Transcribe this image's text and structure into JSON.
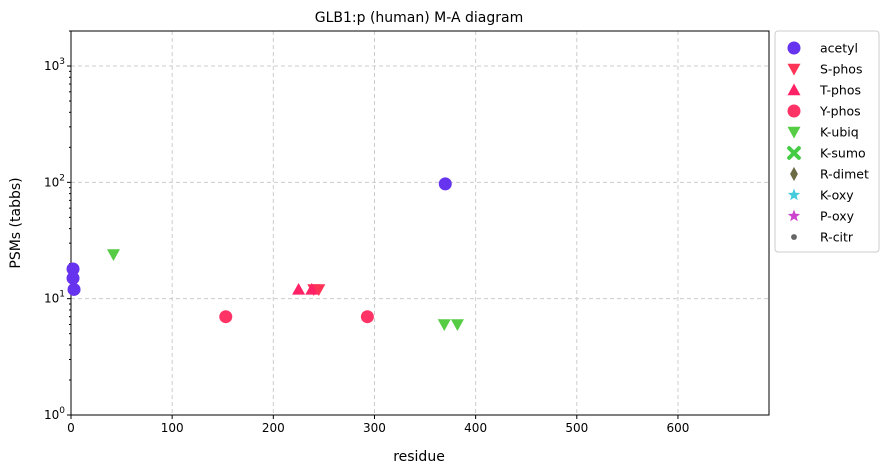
{
  "chart_data": {
    "type": "scatter",
    "title": "GLB1:p (human) M-A diagram",
    "xlabel": "residue",
    "ylabel": "PSMs (tabbs)",
    "xlim": [
      0,
      690
    ],
    "ylim": [
      1,
      2000
    ],
    "yscale": "log",
    "xticks": [
      "0",
      "100",
      "200",
      "300",
      "400",
      "500",
      "600"
    ],
    "yticks": [
      "10^0",
      "10^1",
      "10^2",
      "10^3"
    ],
    "grid": true,
    "legend_position": "outside-right",
    "series": [
      {
        "name": "acetyl",
        "marker": "circle",
        "color": "#6633ee",
        "points": [
          [
            2,
            18
          ],
          [
            2,
            15
          ],
          [
            3,
            12
          ],
          [
            370,
            97
          ]
        ]
      },
      {
        "name": "S-phos",
        "marker": "triangle-down",
        "color": "#ff3355",
        "points": [
          [
            240,
            12
          ],
          [
            245,
            12
          ]
        ]
      },
      {
        "name": "T-phos",
        "marker": "triangle-up",
        "color": "#ff2266",
        "points": [
          [
            225,
            12
          ],
          [
            238,
            12
          ]
        ]
      },
      {
        "name": "Y-phos",
        "marker": "circle",
        "color": "#ff3366",
        "points": [
          [
            153,
            7
          ],
          [
            293,
            7
          ]
        ]
      },
      {
        "name": "K-ubiq",
        "marker": "triangle-down",
        "color": "#55cc44",
        "points": [
          [
            42,
            24
          ],
          [
            369,
            6
          ],
          [
            382,
            6
          ]
        ]
      },
      {
        "name": "K-sumo",
        "marker": "x",
        "color": "#44cc44",
        "points": []
      },
      {
        "name": "R-dimet",
        "marker": "diamond",
        "color": "#6b6b44",
        "points": []
      },
      {
        "name": "K-oxy",
        "marker": "star",
        "color": "#44ccdd",
        "points": []
      },
      {
        "name": "P-oxy",
        "marker": "star",
        "color": "#cc44cc",
        "points": []
      },
      {
        "name": "R-citr",
        "marker": "dot",
        "color": "#666666",
        "points": []
      }
    ]
  }
}
